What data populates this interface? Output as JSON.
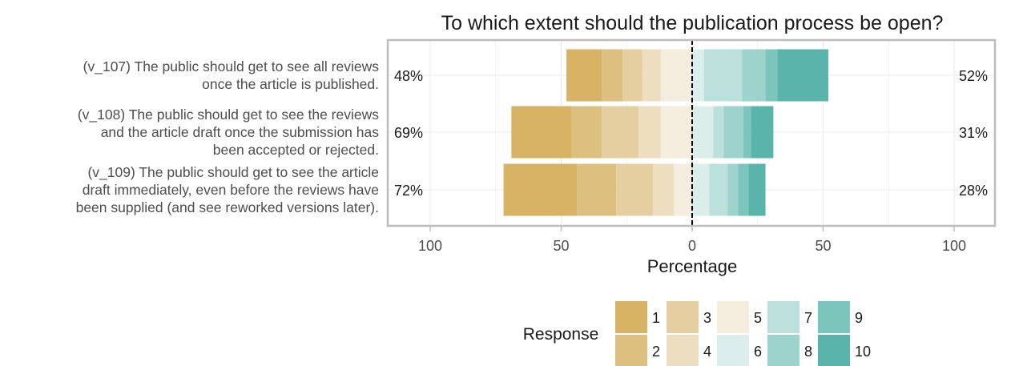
{
  "chart_data": {
    "type": "bar",
    "subtype": "diverging-stacked-likert",
    "title": "To which extent should the publication process be open?",
    "xlabel": "Percentage",
    "ylabel": "",
    "xlim": [
      -115,
      115
    ],
    "x_ticks": [
      -100,
      -50,
      0,
      50,
      100
    ],
    "x_tick_labels": [
      "100",
      "50",
      "0",
      "50",
      "100"
    ],
    "grid": true,
    "categories": [
      "(v_107) The public should get to see all reviews once the article is published.",
      "(v_108) The public should get to see the reviews and the article draft once the submission has been accepted or rejected.",
      "(v_109) The public should get to see the article draft immediately, even before the reviews have been supplied (and see reworked versions later)."
    ],
    "category_label_lines": [
      [
        "(v_107) The public should get to see all reviews",
        "once the article is published."
      ],
      [
        "(v_108) The public should get to see the reviews",
        "and the article draft once the submission has",
        "been accepted or rejected."
      ],
      [
        "(v_109) The public should get to see the article",
        "draft immediately, even before the reviews have",
        "been supplied (and see reworked versions later)."
      ]
    ],
    "series": [
      {
        "name": "1",
        "color": "#D8B365",
        "values": [
          13.5,
          23.0,
          28.0
        ]
      },
      {
        "name": "2",
        "color": "#DDC080",
        "values": [
          8.0,
          11.5,
          15.0
        ]
      },
      {
        "name": "3",
        "color": "#E5CFA1",
        "values": [
          7.5,
          14.0,
          14.0
        ]
      },
      {
        "name": "4",
        "color": "#EDDEBF",
        "values": [
          7.0,
          8.5,
          8.0
        ]
      },
      {
        "name": "5",
        "color": "#F5EDDD",
        "values": [
          12.0,
          12.0,
          7.0
        ]
      },
      {
        "name": "6",
        "color": "#DBEEEC",
        "values": [
          4.5,
          8.0,
          6.5
        ]
      },
      {
        "name": "7",
        "color": "#BCE1DD",
        "values": [
          14.5,
          4.0,
          7.0
        ]
      },
      {
        "name": "8",
        "color": "#9DD3CC",
        "values": [
          9.0,
          7.5,
          4.0
        ]
      },
      {
        "name": "9",
        "color": "#7CC5BC",
        "values": [
          4.5,
          3.0,
          4.0
        ]
      },
      {
        "name": "10",
        "color": "#5AB4AC",
        "values": [
          19.5,
          8.5,
          6.5
        ]
      }
    ],
    "negative_series_count": 5,
    "left_labels": [
      "48%",
      "69%",
      "72%"
    ],
    "right_labels": [
      "52%",
      "31%",
      "28%"
    ],
    "legend": {
      "title": "Response",
      "placement": "bottom"
    },
    "panel_border_color": "#bdbdbd",
    "grid_color": "#ebebeb",
    "zero_line_color": "#000000"
  }
}
